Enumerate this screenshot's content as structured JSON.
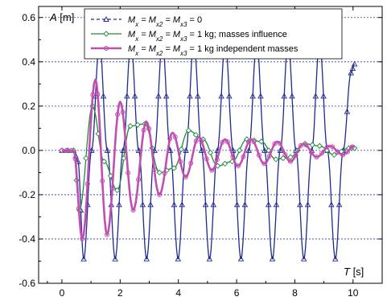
{
  "chart_data": {
    "type": "line",
    "title": "",
    "xlabel": {
      "symbol": "T",
      "unit": "[s]"
    },
    "ylabel": {
      "symbol": "A",
      "unit": "[m]"
    },
    "xlim": [
      -0.8,
      11
    ],
    "ylim": [
      -0.6,
      0.65
    ],
    "x_ticks": [
      0,
      2,
      4,
      6,
      8,
      10
    ],
    "x_tick_labels": [
      "0",
      "2",
      "4",
      "6",
      "8",
      "10"
    ],
    "y_ticks": [
      -0.6,
      -0.4,
      -0.2,
      0.0,
      0.2,
      0.4,
      0.6
    ],
    "y_tick_labels": [
      "-0.6",
      "-0.4",
      "-0.2",
      "0.0",
      "0.2",
      "0.4",
      "0.6"
    ],
    "grid": "horizontal-dashed",
    "legend_position": "top",
    "series": [
      {
        "name": "Mx = Mx2 = Mx3 = 0",
        "legend_label": [
          "M",
          "x",
          " = M",
          "x2",
          " = M",
          "x3",
          " = 0"
        ],
        "color": "#1f2a8f",
        "marker": "triangle",
        "line_style": "dashed",
        "x": [
          0,
          0.4,
          0.55,
          0.75,
          1.02,
          1.29,
          1.56,
          1.83,
          2.1,
          2.37,
          2.64,
          2.91,
          3.18,
          3.45,
          3.72,
          3.99,
          4.26,
          4.53,
          4.8,
          5.07,
          5.34,
          5.61,
          5.88,
          6.15,
          6.42,
          6.69,
          6.96,
          7.23,
          7.5,
          7.77,
          8.04,
          8.31,
          8.58,
          8.85,
          9.12,
          9.39,
          9.66,
          9.93,
          10.05
        ],
        "values": [
          0,
          0,
          -0.05,
          -0.49,
          0,
          0.49,
          0,
          -0.49,
          0,
          0.49,
          0,
          -0.49,
          0,
          0.49,
          0,
          -0.49,
          0,
          0.49,
          0,
          -0.49,
          0,
          0.49,
          0,
          -0.49,
          0,
          0.49,
          0,
          -0.49,
          0,
          0.49,
          0,
          -0.49,
          0,
          0.49,
          0,
          -0.49,
          0,
          0.35,
          0.39
        ]
      },
      {
        "name": "Mx = Mx2 = Mx3 = 1 kg; masses influence",
        "legend_label": [
          "M",
          "x",
          " = M",
          "x2",
          " = M",
          "x3",
          " = 1 kg; masses influence"
        ],
        "color": "#1e8a3c",
        "marker": "diamond",
        "line_style": "solid",
        "x": [
          0,
          0.4,
          0.6,
          1.05,
          1.45,
          1.9,
          2.35,
          2.85,
          3.35,
          3.85,
          4.35,
          4.85,
          5.35,
          5.85,
          6.35,
          6.85,
          7.35,
          7.85,
          8.35,
          8.85,
          9.35,
          9.85,
          10.05
        ],
        "values": [
          0,
          0,
          -0.27,
          0.2,
          -0.05,
          -0.18,
          0.11,
          0.12,
          -0.1,
          -0.08,
          0.09,
          0.05,
          -0.07,
          -0.05,
          0.05,
          0.04,
          -0.04,
          -0.03,
          0.03,
          0.02,
          -0.02,
          0.01,
          0.01
        ]
      },
      {
        "name": "Mx = Mx2 = Mx3 = 1 kg independent masses",
        "legend_label": [
          "M",
          "x",
          " = M",
          "x2",
          " = M",
          "x3",
          " = 1 kg  independent masses"
        ],
        "color": "#c04fb0",
        "marker": "circle",
        "line_style": "solid",
        "x": [
          0,
          0.4,
          0.7,
          1.15,
          1.55,
          2.0,
          2.45,
          2.9,
          3.35,
          3.8,
          4.25,
          4.7,
          5.15,
          5.6,
          6.05,
          6.5,
          6.95,
          7.4,
          7.85,
          8.3,
          8.75,
          9.2,
          9.65,
          10.05
        ],
        "values": [
          0,
          0,
          -0.4,
          0.32,
          -0.38,
          0.22,
          -0.27,
          0.13,
          -0.2,
          0.08,
          -0.12,
          0.06,
          -0.09,
          0.05,
          -0.07,
          0.05,
          -0.06,
          0.04,
          -0.05,
          0.03,
          -0.03,
          0.02,
          -0.02,
          0.02
        ]
      }
    ]
  }
}
